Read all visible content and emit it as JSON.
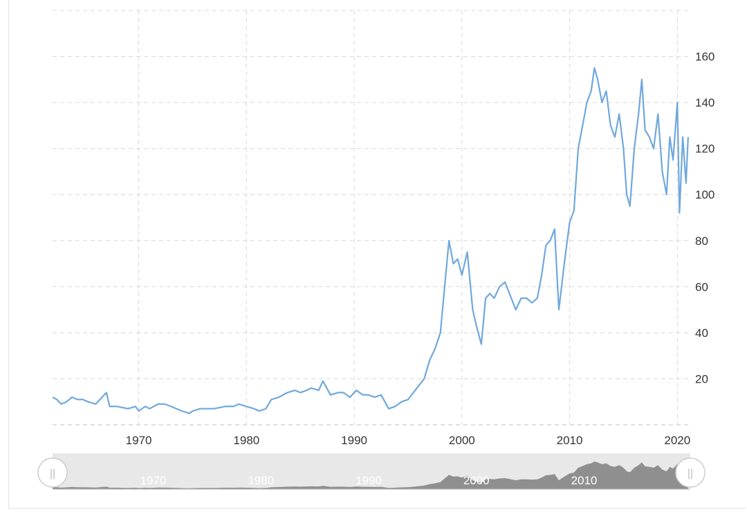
{
  "colors": {
    "series": "#6fa8dc",
    "grid": "#d8d8d8",
    "navigator_bg": "#e8e8e8",
    "navigator_area": "#8f8f8f",
    "tick_text": "#333333",
    "handle_fill": "#ffffff",
    "handle_stroke": "#cccccc"
  },
  "navigator": {
    "left_handle_icon": "grip-lines-icon",
    "right_handle_icon": "grip-lines-icon",
    "handle_glyph": "||",
    "ticks": [
      "1970",
      "1980",
      "1990",
      "2000",
      "2010"
    ]
  },
  "chart_data": {
    "type": "line",
    "title": "",
    "xlabel": "",
    "ylabel": "",
    "grid": true,
    "y_axis_side": "right",
    "xlim": [
      1962,
      2021.2
    ],
    "ylim": [
      0,
      180
    ],
    "x_ticks": [
      1970,
      1980,
      1990,
      2000,
      2010,
      2020
    ],
    "y_ticks": [
      20,
      40,
      60,
      80,
      100,
      120,
      140,
      160
    ],
    "series": [
      {
        "x": [
          1962.0,
          1962.4,
          1962.8,
          1963.3,
          1963.8,
          1964.3,
          1964.8,
          1965.3,
          1966.0,
          1966.6,
          1967.0,
          1967.3,
          1968.0,
          1969.0,
          1969.7,
          1970.0,
          1970.6,
          1971.0,
          1971.8,
          1972.4,
          1973.0,
          1974.0,
          1974.7,
          1975.0,
          1975.7,
          1976.0,
          1977.0,
          1978.0,
          1978.8,
          1979.3,
          1980.0,
          1980.7,
          1981.2,
          1981.8,
          1982.3,
          1983.0,
          1983.8,
          1984.5,
          1985.0,
          1985.6,
          1986.0,
          1986.7,
          1987.1,
          1987.8,
          1988.5,
          1989.0,
          1989.6,
          1990.2,
          1990.8,
          1991.3,
          1991.9,
          1992.5,
          1993.2,
          1993.8,
          1994.4,
          1995.0,
          1995.5,
          1996.0,
          1996.5,
          1997.0,
          1997.5,
          1998.0,
          1998.4,
          1998.8,
          1999.2,
          1999.6,
          2000.0,
          2000.5,
          2001.0,
          2001.4,
          2001.8,
          2002.2,
          2002.6,
          2003.0,
          2003.5,
          2004.0,
          2004.5,
          2005.0,
          2005.5,
          2006.0,
          2006.5,
          2007.0,
          2007.4,
          2007.8,
          2008.2,
          2008.6,
          2009.0,
          2009.5,
          2010.0,
          2010.4,
          2010.8,
          2011.2,
          2011.6,
          2012.0,
          2012.3,
          2012.6,
          2013.0,
          2013.4,
          2013.8,
          2014.2,
          2014.6,
          2015.0,
          2015.3,
          2015.6,
          2016.0,
          2016.4,
          2016.7,
          2017.0,
          2017.4,
          2017.8,
          2018.2,
          2018.6,
          2019.0,
          2019.3,
          2019.6,
          2020.0,
          2020.2,
          2020.5,
          2020.8,
          2021.0
        ],
        "values": [
          12,
          11,
          9,
          10,
          12,
          11,
          11,
          10,
          9,
          12,
          14,
          8,
          8,
          7,
          8,
          6,
          8,
          7,
          9,
          9,
          8,
          6,
          5,
          6,
          7,
          7,
          7,
          8,
          8,
          9,
          8,
          7,
          6,
          7,
          11,
          12,
          14,
          15,
          14,
          15,
          16,
          15,
          19,
          13,
          14,
          14,
          12,
          15,
          13,
          13,
          12,
          13,
          7,
          8,
          10,
          11,
          14,
          17,
          20,
          28,
          33,
          40,
          60,
          80,
          70,
          72,
          65,
          75,
          50,
          42,
          35,
          55,
          57,
          55,
          60,
          62,
          56,
          50,
          55,
          55,
          53,
          55,
          65,
          78,
          80,
          85,
          50,
          70,
          88,
          93,
          120,
          130,
          140,
          145,
          155,
          150,
          140,
          145,
          130,
          125,
          135,
          120,
          100,
          95,
          120,
          135,
          150,
          128,
          125,
          120,
          135,
          110,
          100,
          125,
          115,
          140,
          92,
          125,
          105,
          125
        ]
      }
    ]
  }
}
